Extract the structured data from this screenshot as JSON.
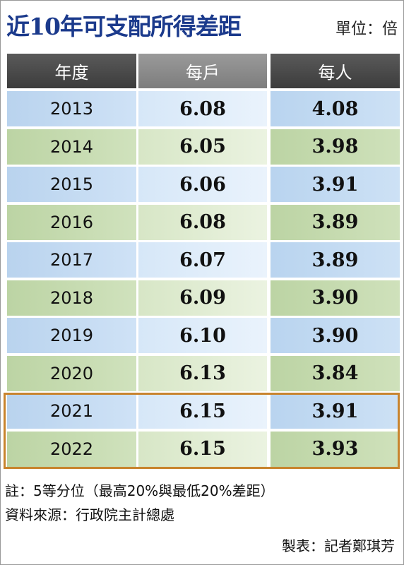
{
  "header": {
    "title": "近10年可支配所得差距",
    "unit": "單位：倍"
  },
  "table": {
    "columns": [
      "年度",
      "每戶",
      "每人"
    ],
    "rows": [
      [
        "2013",
        "6.08",
        "4.08"
      ],
      [
        "2014",
        "6.05",
        "3.98"
      ],
      [
        "2015",
        "6.06",
        "3.91"
      ],
      [
        "2016",
        "6.08",
        "3.89"
      ],
      [
        "2017",
        "6.07",
        "3.89"
      ],
      [
        "2018",
        "6.09",
        "3.90"
      ],
      [
        "2019",
        "6.10",
        "3.90"
      ],
      [
        "2020",
        "6.13",
        "3.84"
      ],
      [
        "2021",
        "6.15",
        "3.91"
      ],
      [
        "2022",
        "6.15",
        "3.93"
      ]
    ]
  },
  "notes": [
    "註：5等分位（最高20%與最低20%差距）",
    "資料來源：行政院主計總處"
  ],
  "credit": "製表：記者鄭琪芳"
}
